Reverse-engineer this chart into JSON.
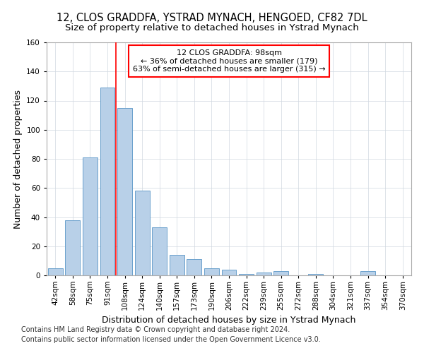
{
  "title": "12, CLOS GRADDFA, YSTRAD MYNACH, HENGOED, CF82 7DL",
  "subtitle": "Size of property relative to detached houses in Ystrad Mynach",
  "xlabel": "Distribution of detached houses by size in Ystrad Mynach",
  "ylabel": "Number of detached properties",
  "categories": [
    "42sqm",
    "58sqm",
    "75sqm",
    "91sqm",
    "108sqm",
    "124sqm",
    "140sqm",
    "157sqm",
    "173sqm",
    "190sqm",
    "206sqm",
    "222sqm",
    "239sqm",
    "255sqm",
    "272sqm",
    "288sqm",
    "304sqm",
    "321sqm",
    "337sqm",
    "354sqm",
    "370sqm"
  ],
  "values": [
    5,
    38,
    81,
    129,
    115,
    58,
    33,
    14,
    11,
    5,
    4,
    1,
    2,
    3,
    0,
    1,
    0,
    0,
    3,
    0,
    0
  ],
  "bar_color": "#b8d0e8",
  "bar_edge_color": "#6aa0cc",
  "red_line_x": 3.5,
  "annotation_title": "12 CLOS GRADDFA: 98sqm",
  "annotation_line1": "← 36% of detached houses are smaller (179)",
  "annotation_line2": "63% of semi-detached houses are larger (315) →",
  "ylim": [
    0,
    160
  ],
  "yticks": [
    0,
    20,
    40,
    60,
    80,
    100,
    120,
    140,
    160
  ],
  "footer_line1": "Contains HM Land Registry data © Crown copyright and database right 2024.",
  "footer_line2": "Contains public sector information licensed under the Open Government Licence v3.0.",
  "bg_color": "#ffffff",
  "plot_bg_color": "#ffffff",
  "grid_color": "#d0d8e0",
  "title_fontsize": 10.5,
  "subtitle_fontsize": 9.5,
  "axis_label_fontsize": 9,
  "tick_fontsize": 7.5,
  "annotation_fontsize": 8,
  "footer_fontsize": 7
}
